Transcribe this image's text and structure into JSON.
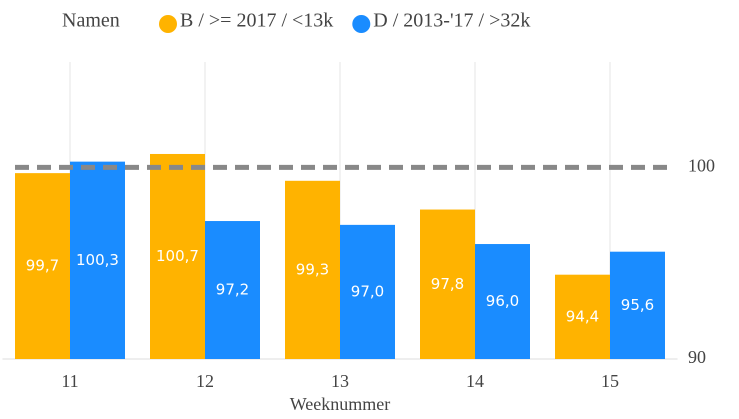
{
  "chart_data": {
    "type": "bar",
    "legend_title": "Namen",
    "x_label": "Weeknummer",
    "categories": [
      "11",
      "12",
      "13",
      "14",
      "15"
    ],
    "series": [
      {
        "name": "B / >= 2017 / <13k",
        "color": "#ffb300",
        "values": [
          99.7,
          100.7,
          99.3,
          97.8,
          94.4
        ],
        "value_labels": [
          "99,7",
          "100,7",
          "99,3",
          "97,8",
          "94,4"
        ]
      },
      {
        "name": "D / 2013-'17 / >32k",
        "color": "#1a8cff",
        "values": [
          100.3,
          97.2,
          97.0,
          96.0,
          95.6
        ],
        "value_labels": [
          "100,3",
          "97,2",
          "97,0",
          "96,0",
          "95,6"
        ]
      }
    ],
    "ylim": [
      90,
      105.5
    ],
    "yticks": [
      90,
      100
    ],
    "reference_line": 100,
    "grid": true,
    "legend_position": "top"
  }
}
